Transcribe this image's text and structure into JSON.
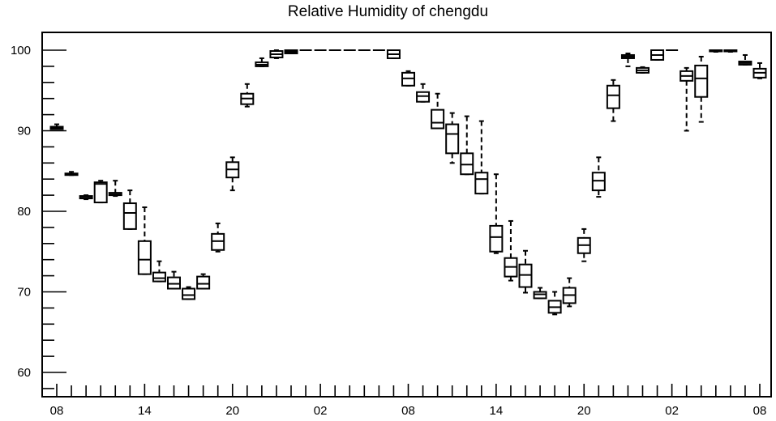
{
  "chart_data": {
    "type": "box",
    "title": "Relative Humidity of chengdu",
    "xlabel": "",
    "ylabel": "",
    "ylim": [
      56.5,
      102.2
    ],
    "yticks": [
      60,
      70,
      80,
      90,
      100
    ],
    "xlim": [
      0,
      48
    ],
    "xticks": [
      {
        "pos": 0,
        "label": "08"
      },
      {
        "pos": 6,
        "label": "14"
      },
      {
        "pos": 12,
        "label": "20"
      },
      {
        "pos": 18,
        "label": "02"
      },
      {
        "pos": 24,
        "label": "08"
      },
      {
        "pos": 30,
        "label": "14"
      },
      {
        "pos": 36,
        "label": "20"
      },
      {
        "pos": 42,
        "label": "02"
      },
      {
        "pos": 48,
        "label": "08"
      }
    ],
    "grid": false,
    "boxes": [
      {
        "x": 0,
        "min": 90.2,
        "q1": 90.2,
        "median": 90.4,
        "q3": 90.5,
        "max": 90.8
      },
      {
        "x": 1,
        "min": 84.5,
        "q1": 84.5,
        "median": 84.6,
        "q3": 84.7,
        "max": 84.9
      },
      {
        "x": 2,
        "min": 81.5,
        "q1": 81.6,
        "median": 81.7,
        "q3": 81.9,
        "max": 82.0
      },
      {
        "x": 3,
        "min": 81.1,
        "q1": 81.1,
        "median": 83.4,
        "q3": 83.6,
        "max": 83.8
      },
      {
        "x": 4,
        "min": 81.9,
        "q1": 82.0,
        "median": 82.1,
        "q3": 82.3,
        "max": 83.8
      },
      {
        "x": 5,
        "min": 77.8,
        "q1": 77.8,
        "median": 79.8,
        "q3": 81.0,
        "max": 82.6
      },
      {
        "x": 6,
        "min": 72.2,
        "q1": 72.2,
        "median": 74.0,
        "q3": 76.3,
        "max": 80.5
      },
      {
        "x": 7,
        "min": 71.3,
        "q1": 71.3,
        "median": 71.7,
        "q3": 72.4,
        "max": 73.8
      },
      {
        "x": 8,
        "min": 70.4,
        "q1": 70.4,
        "median": 71.0,
        "q3": 71.8,
        "max": 72.5
      },
      {
        "x": 9,
        "min": 69.1,
        "q1": 69.1,
        "median": 69.6,
        "q3": 70.4,
        "max": 70.6
      },
      {
        "x": 10,
        "min": 70.4,
        "q1": 70.4,
        "median": 71.0,
        "q3": 71.9,
        "max": 72.2
      },
      {
        "x": 11,
        "min": 75.0,
        "q1": 75.2,
        "median": 76.3,
        "q3": 77.2,
        "max": 78.5
      },
      {
        "x": 12,
        "min": 82.6,
        "q1": 84.2,
        "median": 85.2,
        "q3": 86.1,
        "max": 86.7
      },
      {
        "x": 13,
        "min": 93.0,
        "q1": 93.3,
        "median": 94.0,
        "q3": 94.6,
        "max": 95.8
      },
      {
        "x": 14,
        "min": 98.0,
        "q1": 98.0,
        "median": 98.2,
        "q3": 98.5,
        "max": 99.0
      },
      {
        "x": 15,
        "min": 99.0,
        "q1": 99.1,
        "median": 99.5,
        "q3": 99.9,
        "max": 100.0
      },
      {
        "x": 16,
        "min": 99.6,
        "q1": 99.6,
        "median": 99.8,
        "q3": 100.0,
        "max": 100.0
      },
      {
        "x": 17,
        "min": 100.0,
        "q1": 100.0,
        "median": 100.0,
        "q3": 100.0,
        "max": 100.0
      },
      {
        "x": 18,
        "min": 100.0,
        "q1": 100.0,
        "median": 100.0,
        "q3": 100.0,
        "max": 100.0
      },
      {
        "x": 19,
        "min": 100.0,
        "q1": 100.0,
        "median": 100.0,
        "q3": 100.0,
        "max": 100.0
      },
      {
        "x": 20,
        "min": 100.0,
        "q1": 100.0,
        "median": 100.0,
        "q3": 100.0,
        "max": 100.0
      },
      {
        "x": 21,
        "min": 100.0,
        "q1": 100.0,
        "median": 100.0,
        "q3": 100.0,
        "max": 100.0
      },
      {
        "x": 22,
        "min": 100.0,
        "q1": 100.0,
        "median": 100.0,
        "q3": 100.0,
        "max": 100.0
      },
      {
        "x": 23,
        "min": 99.0,
        "q1": 99.0,
        "median": 99.5,
        "q3": 100.0,
        "max": 100.0
      },
      {
        "x": 24,
        "min": 95.6,
        "q1": 95.6,
        "median": 96.5,
        "q3": 97.2,
        "max": 97.4
      },
      {
        "x": 25,
        "min": 93.6,
        "q1": 93.6,
        "median": 94.3,
        "q3": 94.8,
        "max": 95.8
      },
      {
        "x": 26,
        "min": 90.3,
        "q1": 90.3,
        "median": 91.0,
        "q3": 92.6,
        "max": 94.6
      },
      {
        "x": 27,
        "min": 86.0,
        "q1": 87.2,
        "median": 89.6,
        "q3": 90.8,
        "max": 92.2
      },
      {
        "x": 28,
        "min": 84.6,
        "q1": 84.6,
        "median": 85.8,
        "q3": 87.2,
        "max": 91.8
      },
      {
        "x": 29,
        "min": 82.2,
        "q1": 82.2,
        "median": 84.0,
        "q3": 84.8,
        "max": 91.2
      },
      {
        "x": 30,
        "min": 74.8,
        "q1": 75.0,
        "median": 76.8,
        "q3": 78.2,
        "max": 84.6
      },
      {
        "x": 31,
        "min": 71.4,
        "q1": 71.9,
        "median": 73.1,
        "q3": 74.2,
        "max": 78.8
      },
      {
        "x": 32,
        "min": 69.9,
        "q1": 70.6,
        "median": 72.1,
        "q3": 73.4,
        "max": 75.1
      },
      {
        "x": 33,
        "min": 69.2,
        "q1": 69.2,
        "median": 69.7,
        "q3": 70.0,
        "max": 70.5
      },
      {
        "x": 34,
        "min": 67.2,
        "q1": 67.4,
        "median": 68.1,
        "q3": 68.9,
        "max": 70.0
      },
      {
        "x": 35,
        "min": 68.2,
        "q1": 68.6,
        "median": 69.6,
        "q3": 70.5,
        "max": 71.7
      },
      {
        "x": 36,
        "min": 73.8,
        "q1": 74.8,
        "median": 75.8,
        "q3": 76.7,
        "max": 77.8
      },
      {
        "x": 37,
        "min": 81.8,
        "q1": 82.6,
        "median": 83.8,
        "q3": 84.8,
        "max": 86.7
      },
      {
        "x": 38,
        "min": 91.2,
        "q1": 92.8,
        "median": 94.4,
        "q3": 95.6,
        "max": 96.3
      },
      {
        "x": 39,
        "min": 98.0,
        "q1": 99.0,
        "median": 99.2,
        "q3": 99.4,
        "max": 99.6
      },
      {
        "x": 40,
        "min": 97.2,
        "q1": 97.2,
        "median": 97.5,
        "q3": 97.8,
        "max": 97.9
      },
      {
        "x": 41,
        "min": 98.8,
        "q1": 98.8,
        "median": 99.4,
        "q3": 100.0,
        "max": 100.0
      },
      {
        "x": 42,
        "min": 100.0,
        "q1": 100.0,
        "median": 100.0,
        "q3": 100.0,
        "max": 100.0
      },
      {
        "x": 43,
        "min": 90.0,
        "q1": 96.2,
        "median": 96.8,
        "q3": 97.4,
        "max": 97.8
      },
      {
        "x": 44,
        "min": 91.1,
        "q1": 94.2,
        "median": 96.5,
        "q3": 98.1,
        "max": 99.2
      },
      {
        "x": 45,
        "min": 99.8,
        "q1": 99.9,
        "median": 100.0,
        "q3": 100.0,
        "max": 100.0
      },
      {
        "x": 46,
        "min": 99.8,
        "q1": 99.9,
        "median": 100.0,
        "q3": 100.0,
        "max": 100.0
      },
      {
        "x": 47,
        "min": 98.2,
        "q1": 98.2,
        "median": 98.4,
        "q3": 98.6,
        "max": 99.4
      },
      {
        "x": 48,
        "min": 96.5,
        "q1": 96.6,
        "median": 97.2,
        "q3": 97.7,
        "max": 98.4
      }
    ]
  }
}
